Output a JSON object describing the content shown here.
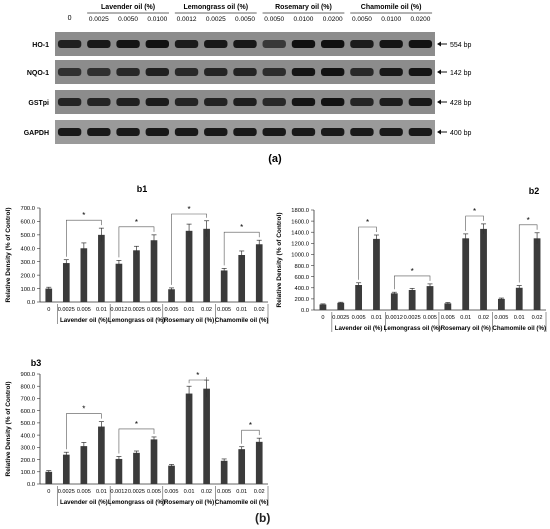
{
  "gel": {
    "label": "(a)",
    "control_label": "0",
    "groups": [
      {
        "name": "Lavender oil (%)",
        "concs": [
          "0.0025",
          "0.0050",
          "0.0100"
        ]
      },
      {
        "name": "Lemongrass oil (%)",
        "concs": [
          "0.0012",
          "0.0025",
          "0.0050"
        ]
      },
      {
        "name": "Rosemary oil (%)",
        "concs": [
          "0.0050",
          "0.0100",
          "0.0200"
        ]
      },
      {
        "name": "Chamomile oil (%)",
        "concs": [
          "0.0050",
          "0.0100",
          "0.0200"
        ]
      }
    ],
    "rows": [
      {
        "gene": "HO-1",
        "size": "554 bp",
        "intensity": [
          0.75,
          0.85,
          0.9,
          0.92,
          0.8,
          0.85,
          0.85,
          0.45,
          0.95,
          0.95,
          0.8,
          0.88,
          0.92
        ]
      },
      {
        "gene": "NQO-1",
        "size": "142 bp",
        "intensity": [
          0.55,
          0.55,
          0.65,
          0.75,
          0.65,
          0.7,
          0.72,
          0.6,
          0.9,
          0.92,
          0.65,
          0.85,
          0.9
        ]
      },
      {
        "gene": "GSTpi",
        "size": "428 bp",
        "intensity": [
          0.7,
          0.7,
          0.75,
          0.8,
          0.7,
          0.72,
          0.78,
          0.65,
          0.9,
          0.92,
          0.7,
          0.8,
          0.85
        ]
      },
      {
        "gene": "GAPDH",
        "size": "400 bp",
        "intensity": [
          0.85,
          0.85,
          0.85,
          0.85,
          0.85,
          0.85,
          0.85,
          0.85,
          0.85,
          0.85,
          0.85,
          0.85,
          0.85
        ]
      }
    ]
  },
  "figure_label_b": "(b)",
  "chart_data": [
    {
      "id": "b1",
      "type": "bar",
      "title": "b1",
      "ylabel": "Relative Density (% of Control)",
      "ylim": [
        0,
        700
      ],
      "yticks": [
        "0.0",
        "100.0",
        "200.0",
        "300.0",
        "400.0",
        "500.0",
        "600.0",
        "700.0"
      ],
      "categories": [
        "0",
        "0.0025",
        "0.005",
        "0.01",
        "0.0012",
        "0.0025",
        "0.005",
        "0.005",
        "0.01",
        "0.02",
        "0.005",
        "0.01",
        "0.02"
      ],
      "values": [
        100,
        290,
        400,
        500,
        285,
        385,
        460,
        95,
        530,
        545,
        235,
        350,
        430
      ],
      "errors": [
        10,
        25,
        40,
        50,
        25,
        30,
        40,
        10,
        50,
        60,
        15,
        30,
        30
      ],
      "groups": [
        {
          "label": "Lavender oil (%)",
          "start": 1,
          "end": 3
        },
        {
          "label": "Lemongrass oil (%)",
          "start": 4,
          "end": 6
        },
        {
          "label": "Rosemary oil (%)",
          "start": 7,
          "end": 9
        },
        {
          "label": "Chamomile oil (%)",
          "start": 10,
          "end": 12
        }
      ],
      "brackets": [
        {
          "from": 1,
          "to": 3,
          "label": "*"
        },
        {
          "from": 4,
          "to": 6,
          "label": "*"
        },
        {
          "from": 7,
          "to": 9,
          "label": "*"
        },
        {
          "from": 10,
          "to": 12,
          "label": "*"
        }
      ]
    },
    {
      "id": "b2",
      "type": "bar",
      "title": "b2",
      "ylabel": "Relative Density (% of Control)",
      "ylim": [
        0,
        1800
      ],
      "yticks": [
        "0.0",
        "200.0",
        "400.0",
        "600.0",
        "800.0",
        "1000.0",
        "1200.0",
        "1400.0",
        "1600.0",
        "1800.0"
      ],
      "categories": [
        "0",
        "0.0025",
        "0.005",
        "0.01",
        "0.0012",
        "0.0025",
        "0.005",
        "0.005",
        "0.01",
        "0.02",
        "0.005",
        "0.01",
        "0.02"
      ],
      "values": [
        100,
        130,
        450,
        1280,
        300,
        360,
        430,
        120,
        1290,
        1460,
        200,
        400,
        1290
      ],
      "errors": [
        10,
        10,
        40,
        70,
        20,
        30,
        40,
        15,
        80,
        90,
        15,
        40,
        100
      ],
      "groups": [
        {
          "label": "Lavender oil (%)",
          "start": 1,
          "end": 3
        },
        {
          "label": "Lemongrass oil (%)",
          "start": 4,
          "end": 6
        },
        {
          "label": "Rosemary oil (%)",
          "start": 7,
          "end": 9
        },
        {
          "label": "Chamomile oil (%)",
          "start": 10,
          "end": 12
        }
      ],
      "brackets": [
        {
          "from": 2,
          "to": 3,
          "label": "*"
        },
        {
          "from": 4,
          "to": 6,
          "label": "*"
        },
        {
          "from": 8,
          "to": 9,
          "label": "*"
        },
        {
          "from": 11,
          "to": 12,
          "label": "*"
        }
      ]
    },
    {
      "id": "b3",
      "type": "bar",
      "title": "b3",
      "ylabel": "Relative Density (% of Control)",
      "ylim": [
        0,
        900
      ],
      "yticks": [
        "0.0",
        "100.0",
        "200.0",
        "300.0",
        "400.0",
        "500.0",
        "600.0",
        "700.0",
        "800.0",
        "900.0"
      ],
      "categories": [
        "0",
        "0.0025",
        "0.005",
        "0.01",
        "0.0012",
        "0.0025",
        "0.005",
        "0.005",
        "0.01",
        "0.02",
        "0.005",
        "0.01",
        "0.02"
      ],
      "values": [
        100,
        240,
        310,
        470,
        205,
        255,
        365,
        150,
        740,
        780,
        190,
        285,
        345
      ],
      "errors": [
        10,
        20,
        30,
        40,
        20,
        15,
        20,
        10,
        60,
        70,
        15,
        20,
        30
      ],
      "groups": [
        {
          "label": "Lavender oil (%)",
          "start": 1,
          "end": 3
        },
        {
          "label": "Lemongrass oil (%)",
          "start": 4,
          "end": 6
        },
        {
          "label": "Rosemary oil (%)",
          "start": 7,
          "end": 9
        },
        {
          "label": "Chamomile oil (%)",
          "start": 10,
          "end": 12
        }
      ],
      "brackets": [
        {
          "from": 1,
          "to": 3,
          "label": "*"
        },
        {
          "from": 4,
          "to": 6,
          "label": "*"
        },
        {
          "from": 8,
          "to": 9,
          "label": "*"
        },
        {
          "from": 11,
          "to": 12,
          "label": "*"
        }
      ]
    }
  ]
}
